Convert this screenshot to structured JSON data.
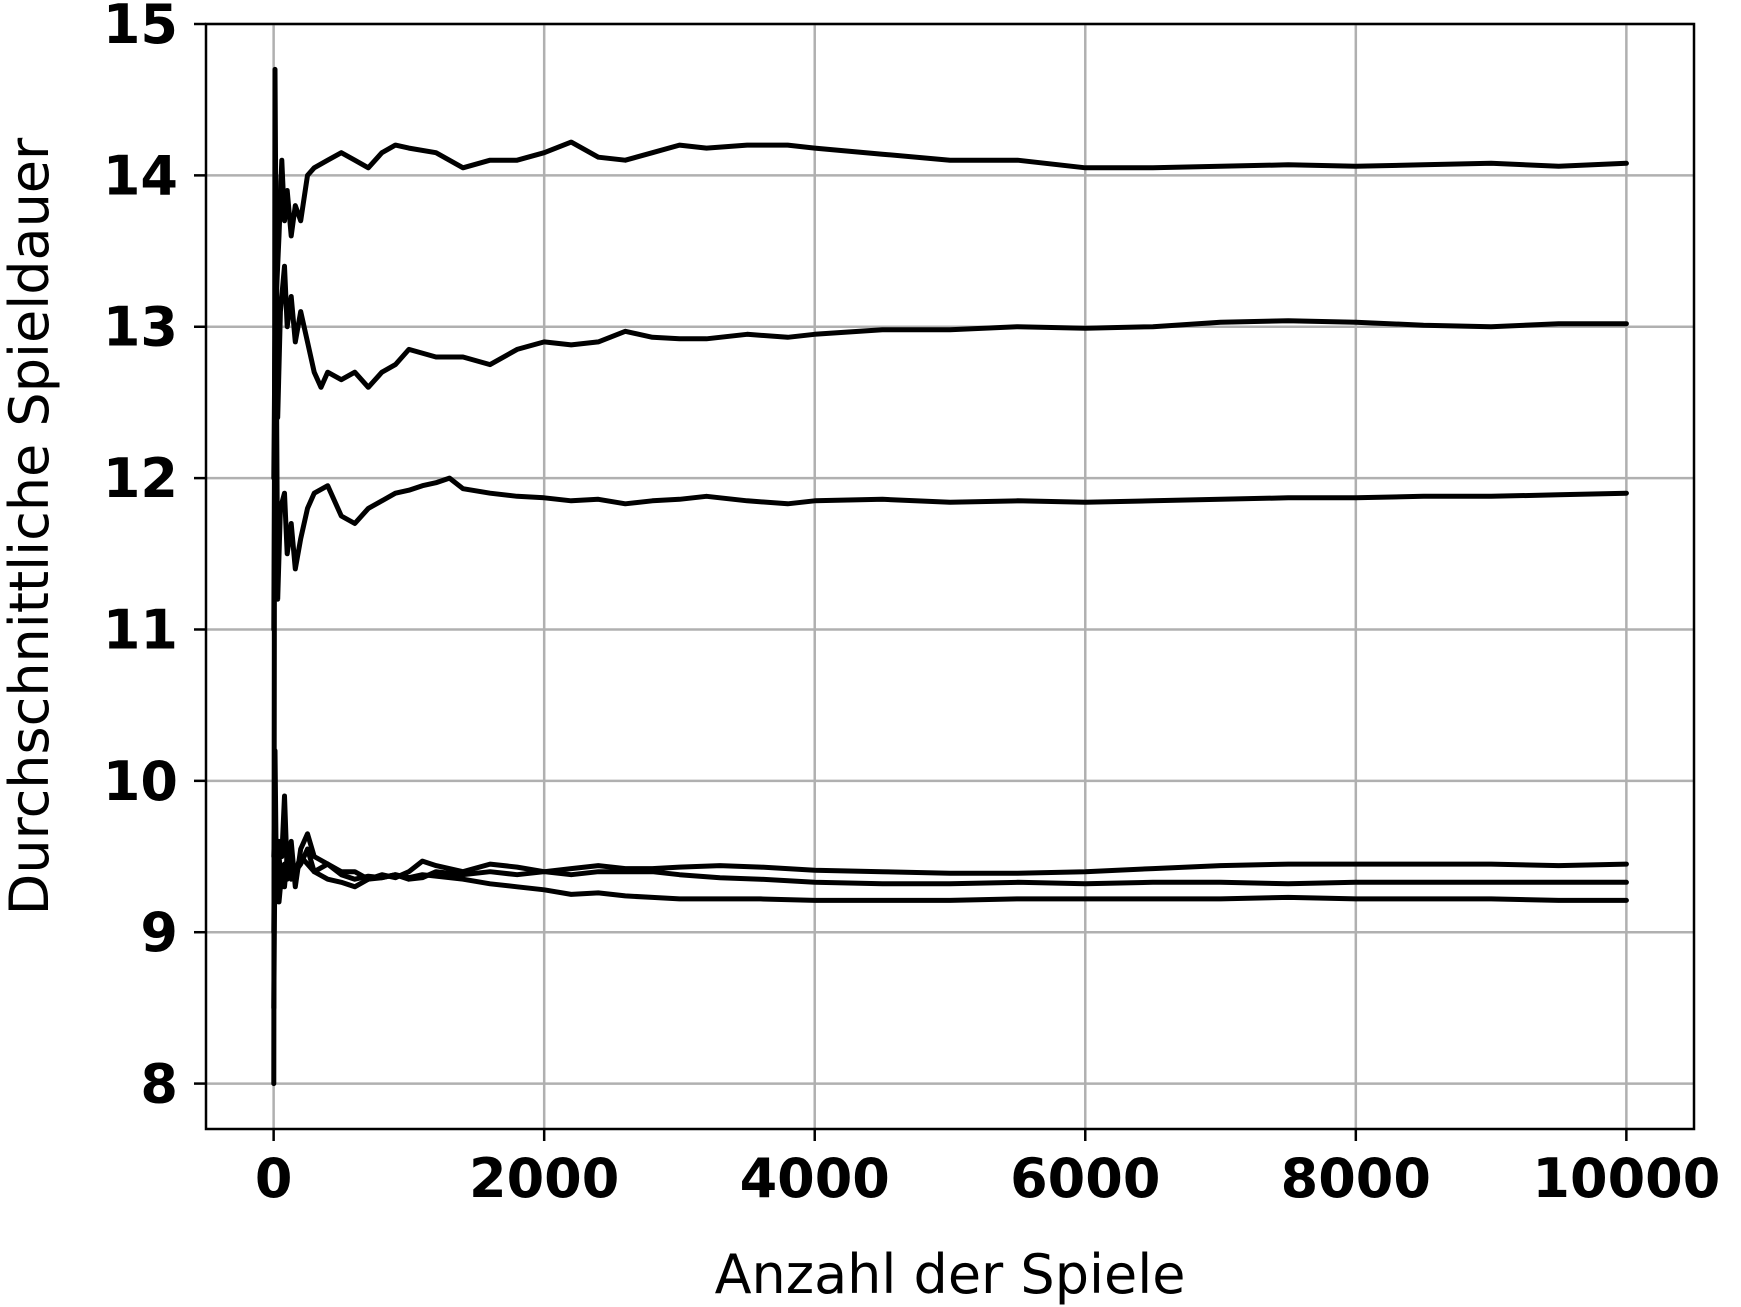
{
  "chart_data": {
    "type": "line",
    "title": "",
    "xlabel": "Anzahl der Spiele",
    "ylabel": "Durchschnittliche Spieldauer",
    "xlim": [
      -500,
      10500
    ],
    "ylim": [
      7.7,
      15.0
    ],
    "xticks": [
      0,
      2000,
      4000,
      6000,
      8000,
      10000
    ],
    "xtick_labels": [
      "0",
      "2000",
      "4000",
      "6000",
      "8000",
      "10000"
    ],
    "yticks": [
      8,
      9,
      10,
      11,
      12,
      13,
      14,
      15
    ],
    "ytick_labels": [
      "8",
      "9",
      "10",
      "11",
      "12",
      "13",
      "14",
      "15"
    ],
    "grid": true,
    "color": "#000000",
    "series": [
      {
        "x": [
          1,
          10,
          20,
          40,
          60,
          80,
          100,
          130,
          160,
          200,
          250,
          300,
          400,
          500,
          600,
          700,
          800,
          900,
          1000,
          1200,
          1400,
          1600,
          1800,
          2000,
          2200,
          2400,
          2600,
          2800,
          3000,
          3200,
          3500,
          3800,
          4000,
          4500,
          5000,
          5500,
          6000,
          6500,
          7000,
          7500,
          8000,
          8500,
          9000,
          9500,
          10000
        ],
        "y": [
          8.0,
          14.7,
          13.2,
          13.6,
          14.1,
          13.7,
          13.9,
          13.6,
          13.8,
          13.7,
          14.0,
          14.05,
          14.1,
          14.15,
          14.1,
          14.05,
          14.15,
          14.2,
          14.18,
          14.15,
          14.05,
          14.1,
          14.1,
          14.15,
          14.22,
          14.12,
          14.1,
          14.15,
          14.2,
          14.18,
          14.2,
          14.2,
          14.18,
          14.14,
          14.1,
          14.1,
          14.05,
          14.05,
          14.06,
          14.07,
          14.06,
          14.07,
          14.08,
          14.06,
          14.08
        ]
      },
      {
        "x": [
          1,
          15,
          30,
          50,
          80,
          100,
          130,
          160,
          200,
          250,
          300,
          350,
          400,
          500,
          600,
          700,
          800,
          900,
          1000,
          1200,
          1400,
          1600,
          1800,
          2000,
          2200,
          2400,
          2600,
          2800,
          3000,
          3200,
          3500,
          3800,
          4000,
          4500,
          5000,
          5500,
          6000,
          6500,
          7000,
          7500,
          8000,
          8500,
          9000,
          9500,
          10000
        ],
        "y": [
          11.0,
          14.0,
          12.4,
          13.1,
          13.4,
          13.0,
          13.2,
          12.9,
          13.1,
          12.9,
          12.7,
          12.6,
          12.7,
          12.65,
          12.7,
          12.6,
          12.7,
          12.75,
          12.85,
          12.8,
          12.8,
          12.75,
          12.85,
          12.9,
          12.88,
          12.9,
          12.97,
          12.93,
          12.92,
          12.92,
          12.95,
          12.93,
          12.95,
          12.98,
          12.98,
          13.0,
          12.99,
          13.0,
          13.03,
          13.04,
          13.03,
          13.01,
          13.0,
          13.02,
          13.02
        ]
      },
      {
        "x": [
          1,
          15,
          30,
          50,
          80,
          100,
          130,
          160,
          200,
          250,
          300,
          400,
          500,
          600,
          700,
          800,
          900,
          1000,
          1100,
          1200,
          1300,
          1400,
          1600,
          1800,
          2000,
          2200,
          2400,
          2600,
          2800,
          3000,
          3200,
          3500,
          3800,
          4000,
          4500,
          5000,
          5500,
          6000,
          6500,
          7000,
          7500,
          8000,
          8500,
          9000,
          9500,
          10000
        ],
        "y": [
          12.0,
          13.5,
          11.2,
          11.8,
          11.9,
          11.5,
          11.7,
          11.4,
          11.6,
          11.8,
          11.9,
          11.95,
          11.75,
          11.7,
          11.8,
          11.85,
          11.9,
          11.92,
          11.95,
          11.97,
          12.0,
          11.93,
          11.9,
          11.88,
          11.87,
          11.85,
          11.86,
          11.83,
          11.85,
          11.86,
          11.88,
          11.85,
          11.83,
          11.85,
          11.86,
          11.84,
          11.85,
          11.84,
          11.85,
          11.86,
          11.87,
          11.87,
          11.88,
          11.88,
          11.89,
          11.9
        ]
      },
      {
        "x": [
          1,
          10,
          20,
          40,
          60,
          80,
          100,
          130,
          160,
          200,
          250,
          300,
          400,
          500,
          600,
          700,
          800,
          900,
          1000,
          1100,
          1200,
          1400,
          1600,
          1800,
          2000,
          2200,
          2400,
          2600,
          2800,
          3000,
          3300,
          3600,
          4000,
          4500,
          5000,
          5500,
          6000,
          6500,
          7000,
          7500,
          8000,
          8500,
          9000,
          9500,
          10000
        ],
        "y": [
          9.0,
          10.2,
          9.4,
          9.6,
          9.5,
          9.9,
          9.4,
          9.6,
          9.3,
          9.55,
          9.65,
          9.5,
          9.45,
          9.4,
          9.4,
          9.35,
          9.38,
          9.36,
          9.4,
          9.47,
          9.44,
          9.4,
          9.45,
          9.43,
          9.4,
          9.42,
          9.44,
          9.42,
          9.42,
          9.43,
          9.44,
          9.43,
          9.41,
          9.4,
          9.39,
          9.39,
          9.4,
          9.42,
          9.44,
          9.45,
          9.45,
          9.45,
          9.45,
          9.44,
          9.45
        ]
      },
      {
        "x": [
          1,
          10,
          20,
          40,
          60,
          80,
          100,
          130,
          160,
          200,
          250,
          300,
          400,
          500,
          600,
          700,
          800,
          900,
          1000,
          1100,
          1200,
          1400,
          1600,
          1800,
          2000,
          2200,
          2400,
          2600,
          2800,
          3000,
          3300,
          3600,
          4000,
          4500,
          5000,
          5500,
          6000,
          6500,
          7000,
          7500,
          8000,
          8500,
          9000,
          9500,
          10000
        ],
        "y": [
          9.5,
          9.8,
          9.2,
          9.5,
          9.3,
          9.45,
          9.35,
          9.5,
          9.4,
          9.45,
          9.55,
          9.4,
          9.45,
          9.38,
          9.35,
          9.37,
          9.36,
          9.38,
          9.35,
          9.36,
          9.4,
          9.38,
          9.4,
          9.38,
          9.4,
          9.38,
          9.4,
          9.4,
          9.4,
          9.38,
          9.36,
          9.35,
          9.33,
          9.32,
          9.32,
          9.33,
          9.32,
          9.33,
          9.33,
          9.32,
          9.33,
          9.33,
          9.33,
          9.33,
          9.33
        ]
      },
      {
        "x": [
          1,
          10,
          20,
          40,
          60,
          80,
          100,
          130,
          160,
          200,
          250,
          300,
          400,
          500,
          600,
          700,
          800,
          900,
          1000,
          1100,
          1200,
          1400,
          1600,
          1800,
          2000,
          2200,
          2400,
          2600,
          2800,
          3000,
          3300,
          3600,
          4000,
          4500,
          5000,
          5500,
          6000,
          6500,
          7000,
          7500,
          8000,
          8500,
          9000,
          9500,
          10000
        ],
        "y": [
          8.5,
          9.6,
          9.3,
          9.2,
          9.4,
          9.3,
          9.5,
          9.35,
          9.4,
          9.5,
          9.45,
          9.4,
          9.35,
          9.33,
          9.3,
          9.35,
          9.36,
          9.38,
          9.36,
          9.38,
          9.37,
          9.35,
          9.32,
          9.3,
          9.28,
          9.25,
          9.26,
          9.24,
          9.23,
          9.22,
          9.22,
          9.22,
          9.21,
          9.21,
          9.21,
          9.22,
          9.22,
          9.22,
          9.22,
          9.23,
          9.22,
          9.22,
          9.22,
          9.21,
          9.21
        ]
      }
    ]
  }
}
